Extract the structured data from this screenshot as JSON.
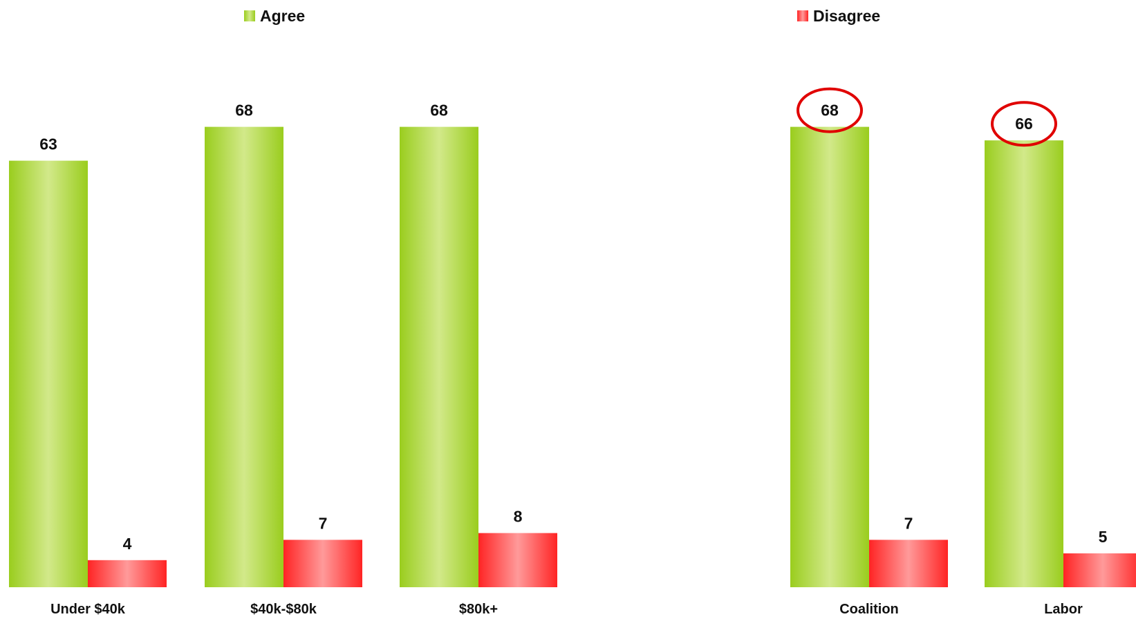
{
  "colors": {
    "agree": "#9ACD1E",
    "disagree": "#FF2424",
    "highlight": "#E00000"
  },
  "chart_data": [
    {
      "type": "bar",
      "categories": [
        "Under $40k",
        "$40k-$80k",
        "$80k+"
      ],
      "series": [
        {
          "name": "Agree",
          "values": [
            63,
            68,
            68
          ]
        },
        {
          "name": "Disagree",
          "values": [
            4,
            7,
            8
          ]
        }
      ],
      "legend_position": "top"
    },
    {
      "type": "bar",
      "categories": [
        "Coalition",
        "Labor"
      ],
      "series": [
        {
          "name": "Agree",
          "values": [
            68,
            66
          ]
        },
        {
          "name": "Disagree",
          "values": [
            7,
            5
          ]
        }
      ],
      "highlighted": [
        {
          "series": "Agree",
          "category": "Coalition"
        },
        {
          "series": "Agree",
          "category": "Labor"
        }
      ],
      "legend_position": "top"
    }
  ]
}
